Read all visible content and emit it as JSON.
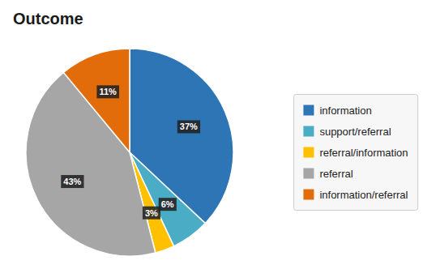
{
  "chart_data": {
    "type": "pie",
    "title": "Outcome",
    "categories": [
      "information",
      "support/referral",
      "referral/information",
      "referral",
      "information/referral"
    ],
    "values": [
      37,
      6,
      3,
      43,
      11
    ],
    "value_labels": [
      "37%",
      "6%",
      "3%",
      "43%",
      "11%"
    ],
    "colors": [
      "#2E75B6",
      "#4BACC6",
      "#FFC000",
      "#A6A6A6",
      "#E36C0A"
    ],
    "data_labels": true,
    "legend": "right"
  }
}
